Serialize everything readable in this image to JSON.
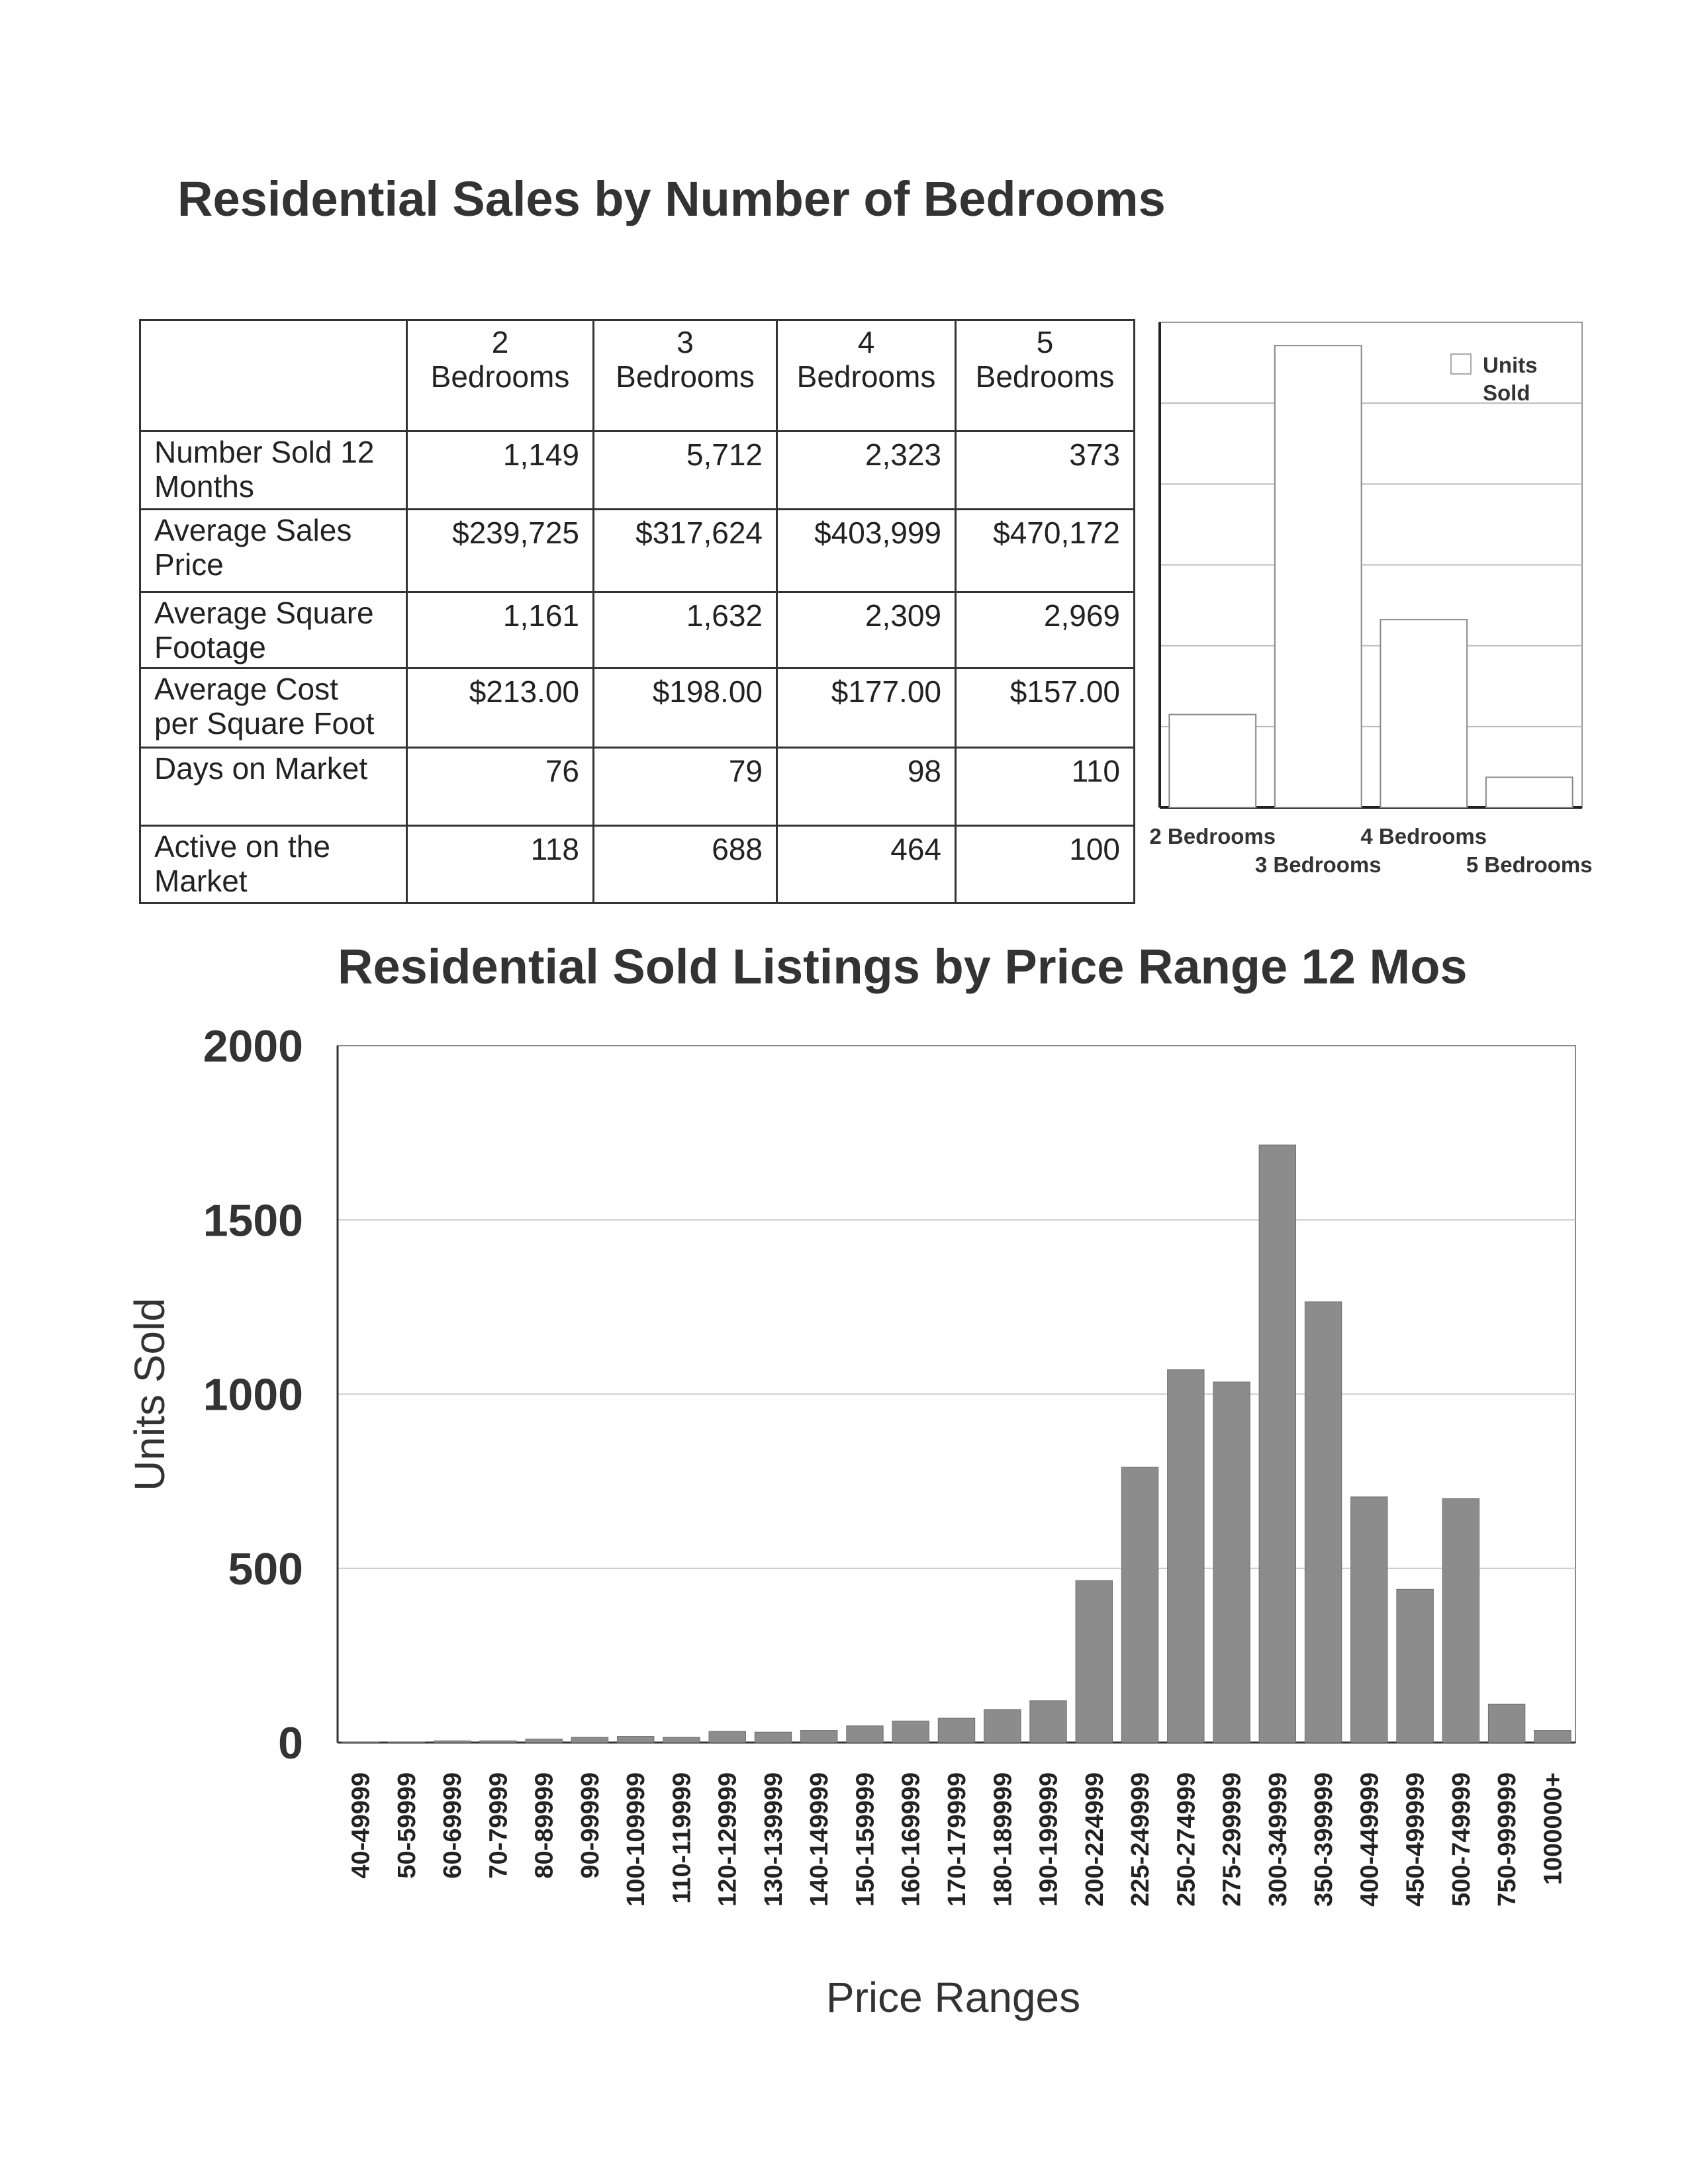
{
  "page": {
    "title_top": "Residential Sales by Number of Bedrooms",
    "title_bottom": "Residential Sold Listings by Price Range 12 Mos"
  },
  "table": {
    "headers": [
      [
        "2",
        "Bedrooms"
      ],
      [
        "3",
        "Bedrooms"
      ],
      [
        "4",
        "Bedrooms"
      ],
      [
        "5",
        "Bedrooms"
      ]
    ],
    "rows": [
      {
        "label": [
          "Number Sold 12",
          "Months"
        ],
        "values": [
          "1,149",
          "5,712",
          "2,323",
          "373"
        ]
      },
      {
        "label": [
          "Average Sales",
          "Price"
        ],
        "values": [
          "$239,725",
          "$317,624",
          "$403,999",
          "$470,172"
        ]
      },
      {
        "label": [
          "Average Square",
          "Footage"
        ],
        "values": [
          "1,161",
          "1,632",
          "2,309",
          "2,969"
        ]
      },
      {
        "label": [
          "Average Cost",
          "per Square Foot"
        ],
        "values": [
          "$213.00",
          "$198.00",
          "$177.00",
          "$157.00"
        ]
      },
      {
        "label": [
          "Days on Market",
          ""
        ],
        "values": [
          "76",
          "79",
          "98",
          "110"
        ]
      },
      {
        "label": [
          "Active on the",
          "Market"
        ],
        "values": [
          "118",
          "688",
          "464",
          "100"
        ]
      }
    ]
  },
  "chart_data": [
    {
      "type": "bar",
      "categories": [
        "2 Bedrooms",
        "3 Bedrooms",
        "4 Bedrooms",
        "5 Bedrooms"
      ],
      "series": [
        {
          "name": "Units Sold",
          "values": [
            1149,
            5712,
            2323,
            373
          ]
        }
      ],
      "ylim": [
        0,
        6000
      ],
      "grid": true,
      "legend": "top-right",
      "tick_labels_shown": false,
      "bar_color": "#ffffff",
      "legend_text": [
        "Units",
        "Sold"
      ]
    },
    {
      "type": "bar",
      "title": "Residential Sold Listings by Price Range 12 Mos",
      "xlabel": "Price Ranges",
      "ylabel": "Units Sold",
      "ylim": [
        0,
        2000
      ],
      "yticks": [
        0,
        500,
        1000,
        1500,
        2000
      ],
      "grid": true,
      "bar_color": "#8c8c8c",
      "categories": [
        "40-49999",
        "50-59999",
        "60-69999",
        "70-79999",
        "80-89999",
        "90-99999",
        "100-109999",
        "110-119999",
        "120-129999",
        "130-139999",
        "140-149999",
        "150-159999",
        "160-169999",
        "170-179999",
        "180-189999",
        "190-199999",
        "200-224999",
        "225-249999",
        "250-274999",
        "275-299999",
        "300-349999",
        "350-399999",
        "400-449999",
        "450-499999",
        "500-749999",
        "750-999999",
        "1000000+"
      ],
      "values": [
        2,
        2,
        5,
        5,
        10,
        15,
        18,
        15,
        32,
        30,
        35,
        48,
        62,
        70,
        95,
        120,
        465,
        790,
        1070,
        1035,
        1715,
        1265,
        705,
        440,
        700,
        110,
        35
      ]
    }
  ]
}
